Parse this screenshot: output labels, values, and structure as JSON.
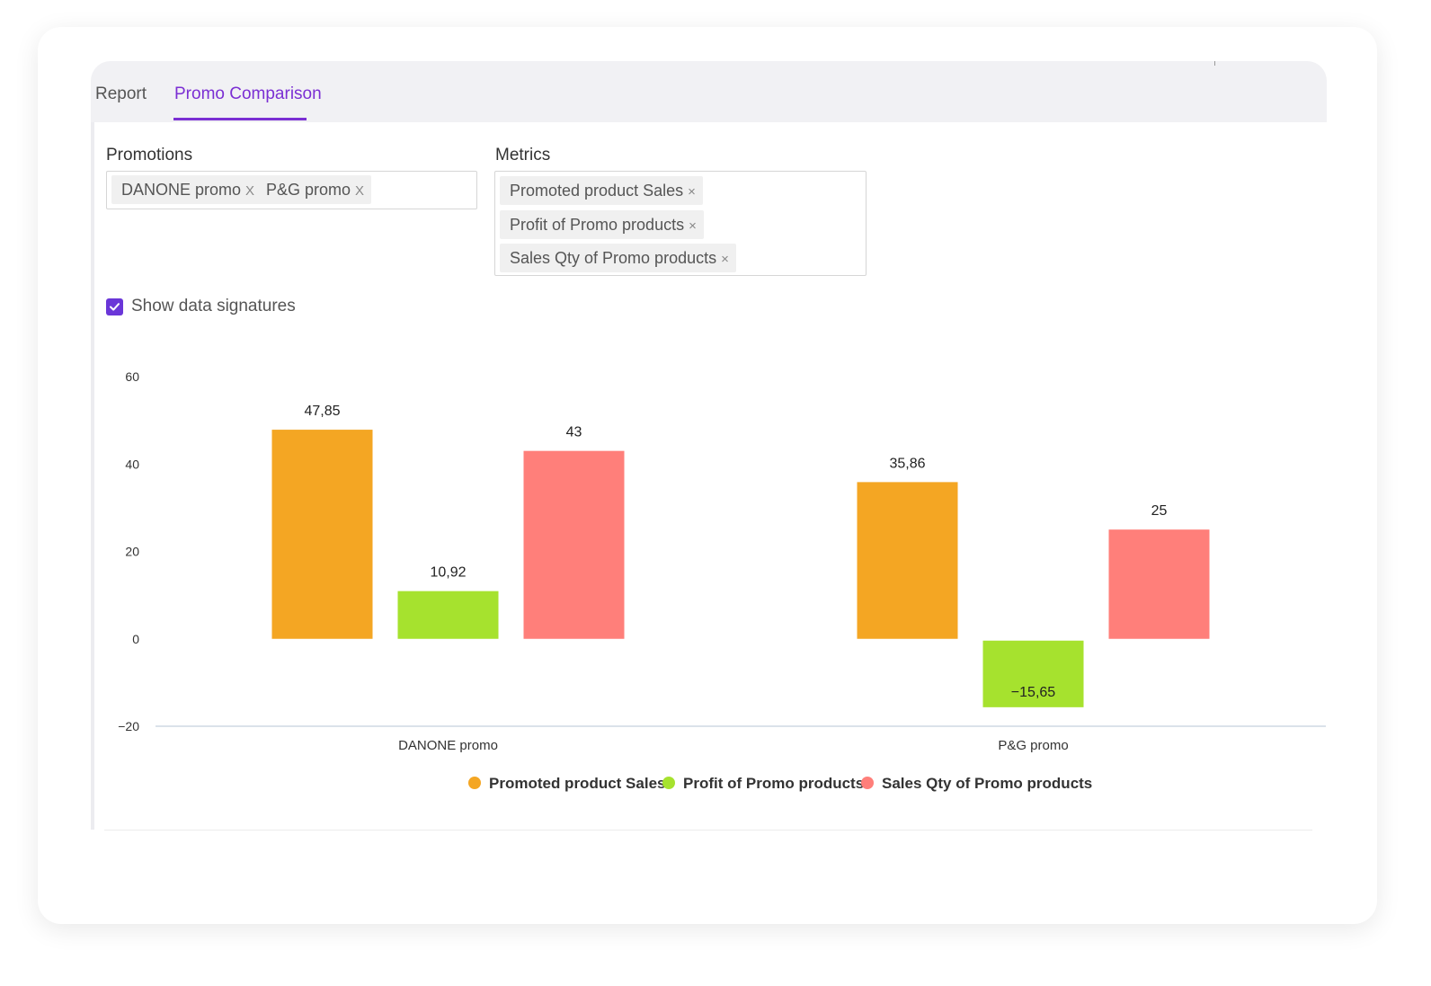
{
  "tabs": [
    {
      "label": "Report",
      "active": false
    },
    {
      "label": "Promo Comparison",
      "active": true
    }
  ],
  "accent_color": "#7b2fd3",
  "promotions": {
    "label": "Promotions",
    "chips": [
      "DANONE promo",
      "P&G promo"
    ]
  },
  "metrics": {
    "label": "Metrics",
    "chips": [
      "Promoted product Sales",
      "Profit of Promo products",
      "Sales Qty of Promo products"
    ]
  },
  "show_signatures": {
    "label": "Show data signatures",
    "checked": true
  },
  "chart_data": {
    "type": "bar",
    "categories": [
      "DANONE promo",
      "P&G promo"
    ],
    "series": [
      {
        "name": "Promoted product Sales",
        "color": "#f4a623",
        "values": [
          47.85,
          35.86
        ],
        "labels": [
          "47,85",
          "35,86"
        ]
      },
      {
        "name": "Profit of Promo products",
        "color": "#a6e22e",
        "values": [
          10.92,
          -15.65
        ],
        "labels": [
          "10,92",
          "−15,65"
        ]
      },
      {
        "name": "Sales Qty of Promo products",
        "color": "#ff7f7a",
        "values": [
          43,
          25
        ],
        "labels": [
          "43",
          "25"
        ]
      }
    ],
    "yticks": [
      60,
      40,
      20,
      0,
      -20
    ],
    "ylim": [
      -20,
      60
    ],
    "grid": false,
    "legend_position": "bottom-center"
  }
}
